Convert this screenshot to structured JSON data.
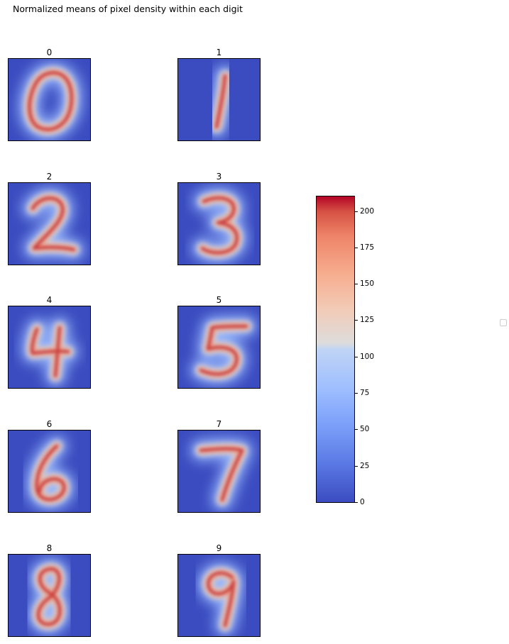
{
  "figure": {
    "suptitle": "Normalized means of pixel density within each digit"
  },
  "chart_data": {
    "type": "heatmap",
    "title": "Normalized means of pixel density within each digit",
    "colormap": "coolwarm",
    "colormap_colors": {
      "low": "#3b4cc0",
      "mid": "#dddddd",
      "high": "#b40426"
    },
    "panels": [
      {
        "label": "0"
      },
      {
        "label": "1"
      },
      {
        "label": "2"
      },
      {
        "label": "3"
      },
      {
        "label": "4"
      },
      {
        "label": "5"
      },
      {
        "label": "6"
      },
      {
        "label": "7"
      },
      {
        "label": "8"
      },
      {
        "label": "9"
      }
    ],
    "colorbar": {
      "range": [
        0,
        210
      ],
      "ticks": [
        "0",
        "25",
        "50",
        "75",
        "100",
        "125",
        "150",
        "175",
        "200"
      ]
    },
    "legend": {
      "entries": []
    }
  }
}
